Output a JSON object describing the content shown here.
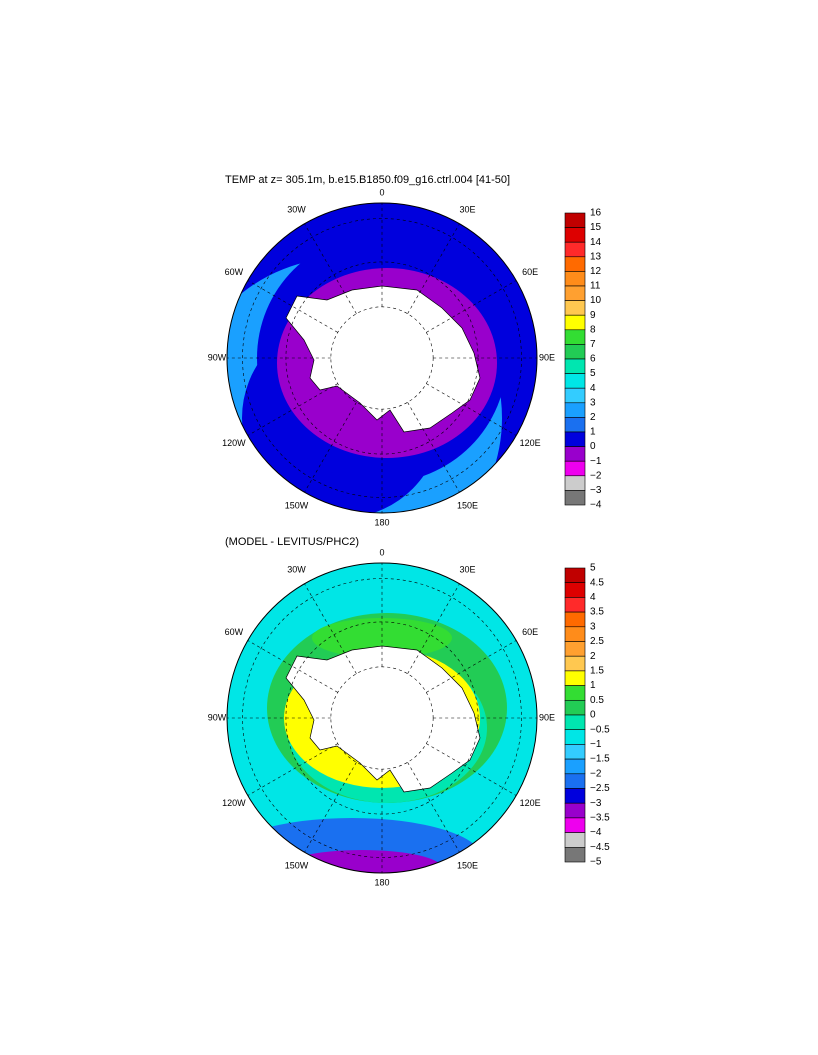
{
  "maps": [
    {
      "title": "TEMP at z= 305.1m, b.e15.B1850.f09_g16.ctrl.004 [41-50]",
      "lon_labels": [
        "0",
        "30E",
        "60E",
        "90E",
        "120E",
        "150E",
        "180",
        "150W",
        "120W",
        "90W",
        "60W",
        "30W"
      ],
      "colorbar": {
        "labels": [
          "16",
          "15",
          "14",
          "13",
          "12",
          "11",
          "10",
          "9",
          "8",
          "7",
          "6",
          "5",
          "4",
          "3",
          "2",
          "1",
          "0",
          "−1",
          "−2",
          "−3",
          "−4"
        ],
        "colors": [
          "#c00000",
          "#dd0000",
          "#ff2a2a",
          "#ff6a00",
          "#ff8c1a",
          "#ffa030",
          "#ffc850",
          "#ffff00",
          "#33dd33",
          "#22cc55",
          "#00e6b0",
          "#00e6e6",
          "#33ccff",
          "#1aa0ff",
          "#1a70f0",
          "#0000dd",
          "#9900cc",
          "#ee00ee",
          "#cccccc",
          "#777777"
        ]
      }
    },
    {
      "title": "(MODEL - LEVITUS/PHC2)",
      "lon_labels": [
        "0",
        "30E",
        "60E",
        "90E",
        "120E",
        "150E",
        "180",
        "150W",
        "120W",
        "90W",
        "60W",
        "30W"
      ],
      "colorbar": {
        "labels": [
          "5",
          "4.5",
          "4",
          "3.5",
          "3",
          "2.5",
          "2",
          "1.5",
          "1",
          "0.5",
          "0",
          "−0.5",
          "−1",
          "−1.5",
          "−2",
          "−2.5",
          "−3",
          "−3.5",
          "−4",
          "−4.5",
          "−5"
        ],
        "colors": [
          "#c00000",
          "#dd0000",
          "#ff2a2a",
          "#ff6a00",
          "#ff8c1a",
          "#ffa030",
          "#ffc850",
          "#ffff00",
          "#33dd33",
          "#22cc55",
          "#00e6b0",
          "#00e6e6",
          "#33ccff",
          "#1aa0ff",
          "#1a70f0",
          "#0000dd",
          "#9900cc",
          "#ee00ee",
          "#cccccc",
          "#777777"
        ]
      }
    }
  ]
}
